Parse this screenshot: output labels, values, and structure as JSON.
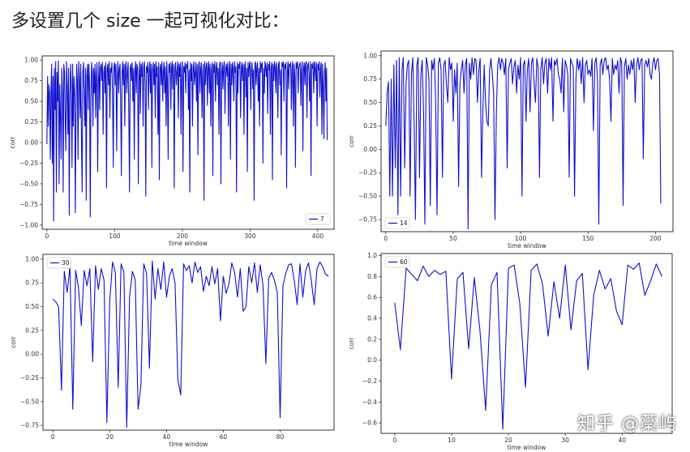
{
  "heading": "多设置几个 size 一起可视化对比：",
  "watermark": {
    "text": "知乎 @",
    "name": "藁屿"
  },
  "colors": {
    "line": "#1010cc",
    "axis": "#000000",
    "tick_text": "#333333"
  },
  "chart_data": [
    {
      "type": "line",
      "xlabel": "time window",
      "ylabel": "corr",
      "xlim": [
        -7,
        424
      ],
      "ylim": [
        -1.05,
        1.05
      ],
      "xticks": [
        0,
        100,
        200,
        300,
        400
      ],
      "yticks": [
        -1.0,
        -0.75,
        -0.5,
        -0.25,
        0.0,
        0.25,
        0.5,
        0.75,
        1.0
      ],
      "ytick_labels": [
        "−1.00",
        "−0.75",
        "−0.50",
        "−0.25",
        "0.00",
        "0.25",
        "0.50",
        "0.75",
        "1.00"
      ],
      "legend_position": "lower-right",
      "series": [
        {
          "name": "7",
          "x_start": 0,
          "x_step": 1.0,
          "values": [
            -0.02,
            0.8,
            0.2,
            0.7,
            0.6,
            -0.2,
            0.65,
            0.95,
            -0.25,
            0.8,
            -0.95,
            0.9,
            0.4,
            0.98,
            -0.6,
            0.85,
            0.5,
            0.99,
            -0.5,
            0.7,
            0.3,
            -0.2,
            0.9,
            0.6,
            -0.6,
            0.95,
            0.85,
            0.3,
            -0.1,
            0.98,
            0.7,
            0.1,
            0.9,
            -0.88,
            0.5,
            0.95,
            0.7,
            -0.3,
            0.95,
            0.2,
            0.8,
            0.6,
            -0.85,
            0.4,
            0.95,
            0.75,
            -0.2,
            0.98,
            0.8,
            0.3,
            0.95,
            0.1,
            -0.6,
            0.85,
            0.97,
            0.6,
            0.2,
            0.9,
            -0.7,
            0.8,
            0.95,
            0.4,
            0.95,
            0.7,
            -0.9,
            0.5,
            0.97,
            0.85,
            0.2,
            0.9,
            0.6,
            0.95,
            0.3,
            0.8,
            0.97,
            -0.35,
            0.7,
            0.98,
            0.4,
            0.9,
            0.95,
            0.75,
            0.97,
            0.1,
            0.85,
            0.93,
            0.6,
            0.97,
            -0.55,
            0.9,
            0.95,
            0.7,
            0.98,
            0.3,
            0.9,
            0.85,
            0.97,
            0.5,
            -0.3,
            0.92,
            0.97,
            0.7,
            0.95,
            -0.1,
            0.8,
            0.98,
            0.6,
            0.9,
            0.95,
            0.4,
            -0.4,
            0.85,
            0.98,
            0.7,
            0.95,
            0.2,
            0.92,
            0.98,
            0.6,
            0.85,
            0.97,
            0.3,
            -0.6,
            0.9,
            0.95,
            0.75,
            0.97,
            0.5,
            0.9,
            -0.2,
            0.85,
            0.98,
            0.6,
            0.95,
            0.9,
            -0.5,
            0.75,
            0.98,
            0.35,
            0.95,
            0.8,
            0.97,
            0.2,
            0.9,
            0.98,
            0.7,
            -0.65,
            0.92,
            0.85,
            0.97,
            0.4,
            0.9,
            0.98,
            0.6,
            0.95,
            -0.3,
            0.88,
            0.97,
            0.7,
            0.95,
            0.3,
            0.98,
            0.8,
            0.92,
            0.1,
            0.97,
            -0.45,
            0.9,
            0.95,
            0.7,
            0.98,
            0.5,
            0.85,
            0.97,
            0.6,
            0.92,
            0.2,
            0.98,
            0.75,
            -0.2,
            0.95,
            0.85,
            0.97,
            0.4,
            0.9,
            0.98,
            0.65,
            0.95,
            -0.55,
            0.9,
            0.97,
            0.7,
            0.85,
            0.98,
            0.3,
            0.95,
            0.8,
            0.97,
            0.1,
            0.9,
            0.98,
            -0.35,
            0.92,
            0.85,
            0.97,
            0.6,
            0.95,
            0.9,
            0.98,
            0.4,
            0.88,
            -0.6,
            0.97,
            0.75,
            0.95,
            0.2,
            0.9,
            0.98,
            0.7,
            0.85,
            0.97,
            0.5,
            0.95,
            -0.15,
            0.92,
            0.98,
            0.6,
            0.9,
            0.97,
            0.3,
            0.85,
            0.95,
            -0.7,
            0.98,
            0.7,
            0.92,
            0.97,
            0.45,
            0.9,
            0.98,
            0.6,
            0.95,
            0.2,
            0.88,
            0.97,
            -0.4,
            0.95,
            0.85,
            0.98,
            0.5,
            0.92,
            0.97,
            0.7,
            0.9,
            0.1,
            0.95,
            0.98,
            -0.5,
            0.85,
            0.97,
            0.65,
            0.92,
            0.98,
            0.35,
            0.9,
            0.95,
            0.8,
            0.97,
            0.2,
            0.88,
            0.98,
            -0.2,
            0.95,
            0.7,
            0.97,
            0.9,
            0.5,
            0.98,
            0.85,
            0.92,
            -0.6,
            0.97,
            0.6,
            0.95,
            0.9,
            0.98,
            0.3,
            0.88,
            0.97,
            0.75,
            0.95,
            0.1,
            0.92,
            0.98,
            0.55,
            0.9,
            -0.35,
            0.97,
            0.8,
            0.95,
            0.98,
            0.4,
            0.9,
            0.97,
            0.65,
            0.88,
            -0.7,
            0.95,
            0.98,
            0.7,
            0.92,
            0.97,
            0.5,
            0.9,
            0.2,
            0.98,
            0.85,
            0.95,
            0.97,
            -0.25,
            0.9,
            0.6,
            0.98,
            0.92,
            0.8,
            0.97,
            0.35,
            0.95,
            0.88,
            0.98,
            0.1,
            0.9,
            0.97,
            -0.45,
            0.95,
            0.75,
            0.98,
            0.92,
            0.6,
            0.97,
            0.9,
            0.3,
            0.95,
            0.98,
            0.7,
            0.88,
            -0.15,
            0.97,
            0.92,
            0.98,
            0.5,
            0.95,
            0.9,
            0.97,
            -0.55,
            0.85,
            0.98,
            0.65,
            0.95,
            0.92,
            0.97,
            0.4,
            0.9,
            0.98,
            0.2,
            0.95,
            0.8,
            -0.3,
            0.97,
            0.9,
            0.98,
            0.6,
            0.92,
            0.95,
            0.97,
            0.45,
            0.88,
            0.98,
            -0.1,
            0.9,
            0.97,
            0.7,
            0.95,
            0.98,
            0.3,
            0.92,
            0.97,
            0.85,
            0.5,
            0.98,
            -0.4,
            0.95,
            0.9,
            0.97,
            0.6,
            0.98,
            0.92,
            0.75,
            0.97,
            0.2,
            0.95,
            0.88,
            0.98,
            0.55,
            0.9,
            0.97,
            0.1,
            0.95,
            0.7,
            0.05,
            0.85,
            0.97,
            0.5,
            0.9,
            0.03
          ]
        }
      ]
    },
    {
      "type": "line",
      "xlabel": "time window",
      "ylabel": "corr",
      "xlim": [
        -3.5,
        213
      ],
      "ylim": [
        -0.88,
        1.05
      ],
      "xticks": [
        0,
        50,
        100,
        150,
        200
      ],
      "yticks": [
        -0.75,
        -0.5,
        -0.25,
        0.0,
        0.25,
        0.5,
        0.75,
        1.0
      ],
      "ytick_labels": [
        "−0.75",
        "−0.50",
        "−0.25",
        "0.00",
        "0.25",
        "0.50",
        "0.75",
        "1.00"
      ],
      "legend_position": "lower-left",
      "series": [
        {
          "name": "14",
          "x_start": 0,
          "x_step": 1.0,
          "values": [
            0.25,
            0.6,
            0.72,
            -0.5,
            0.75,
            -0.5,
            0.9,
            -0.2,
            0.95,
            -0.7,
            0.98,
            -0.5,
            0.85,
            0.98,
            -0.2,
            0.7,
            0.9,
            0.95,
            -0.5,
            0.8,
            0.98,
            0.3,
            -0.75,
            0.9,
            0.98,
            -0.3,
            0.8,
            0.95,
            0.4,
            -0.8,
            0.98,
            0.9,
            0.75,
            -0.6,
            0.95,
            0.85,
            0.97,
            0.5,
            -0.7,
            0.92,
            0.98,
            0.85,
            -0.3,
            0.9,
            0.95,
            0.7,
            0.5,
            0.98,
            0.85,
            0.92,
            0.3,
            0.85,
            0.6,
            0.92,
            -0.4,
            0.7,
            0.85,
            0.95,
            0.6,
            0.9,
            0.97,
            -0.85,
            0.92,
            0.75,
            0.98,
            0.8,
            0.97,
            0.95,
            0.5,
            0.85,
            0.97,
            -0.3,
            0.4,
            0.9,
            0.5,
            0.3,
            0.25,
            0.85,
            0.97,
            0.8,
            0.6,
            -0.75,
            0.4,
            0.9,
            0.98,
            0.85,
            0.97,
            0.92,
            0.8,
            0.97,
            -0.2,
            0.85,
            0.92,
            0.97,
            0.7,
            0.88,
            0.95,
            0.6,
            0.9,
            0.75,
            0.98,
            -0.5,
            0.9,
            0.95,
            0.3,
            0.85,
            0.97,
            0.4,
            0.92,
            0.98,
            0.7,
            0.5,
            0.97,
            0.88,
            -0.3,
            0.85,
            0.98,
            0.7,
            0.92,
            0.97,
            0.6,
            0.97,
            0.85,
            0.98,
            0.3,
            0.95,
            0.9,
            0.97,
            0.8,
            0.75,
            0.6,
            0.97,
            0.4,
            0.95,
            0.9,
            0.8,
            -0.3,
            0.97,
            0.92,
            0.88,
            -0.5,
            0.75,
            0.97,
            0.85,
            0.95,
            0.7,
            0.98,
            0.5,
            0.9,
            0.95,
            0.8,
            0.85,
            0.78,
            0.97,
            0.2,
            0.92,
            0.98,
            0.75,
            -0.8,
            0.9,
            0.97,
            0.8,
            0.95,
            0.98,
            0.85,
            0.9,
            0.75,
            0.3,
            0.97,
            0.8,
            0.9,
            0.85,
            0.95,
            0.6,
            0.98,
            0.92,
            -0.6,
            0.88,
            0.97,
            0.75,
            0.9,
            0.8,
            0.95,
            0.85,
            0.97,
            0.5,
            0.9,
            0.98,
            0.85,
            0.95,
            0.97,
            -0.1,
            0.9,
            0.95,
            0.88,
            0.97,
            0.8,
            0.75,
            0.92,
            0.98,
            0.85,
            0.95,
            0.97,
            0.8,
            -0.58
          ]
        }
      ]
    },
    {
      "type": "line",
      "xlabel": "time window",
      "ylabel": "corr",
      "xlim": [
        -3.5,
        99
      ],
      "ylim": [
        -0.8,
        1.05
      ],
      "xticks": [
        0,
        20,
        40,
        60,
        80
      ],
      "yticks": [
        -0.75,
        -0.5,
        -0.25,
        0.0,
        0.25,
        0.5,
        0.75,
        1.0
      ],
      "ytick_labels": [
        "−0.75",
        "−0.50",
        "−0.25",
        "0.00",
        "0.25",
        "0.50",
        "0.75",
        "1.00"
      ],
      "legend_position": "upper-left",
      "series": [
        {
          "name": "30",
          "x_start": 0,
          "x_step": 1.0,
          "values": [
            0.58,
            0.55,
            0.5,
            -0.38,
            0.87,
            0.65,
            0.92,
            -0.58,
            0.88,
            0.7,
            0.3,
            0.88,
            0.72,
            0.9,
            -0.08,
            0.93,
            0.68,
            0.9,
            0.78,
            -0.72,
            0.55,
            0.97,
            0.86,
            -0.35,
            0.95,
            0.86,
            -0.77,
            0.6,
            0.87,
            0.78,
            -0.58,
            -0.33,
            0.95,
            0.85,
            -0.15,
            0.98,
            0.58,
            0.9,
            0.68,
            0.97,
            0.6,
            0.82,
            0.9,
            0.75,
            -0.27,
            -0.43,
            0.95,
            0.88,
            0.93,
            0.75,
            0.97,
            0.86,
            0.92,
            0.66,
            0.82,
            0.72,
            0.92,
            0.74,
            0.9,
            0.35,
            0.82,
            0.64,
            0.74,
            0.96,
            0.86,
            0.6,
            0.9,
            0.45,
            0.5,
            0.92,
            0.75,
            0.96,
            0.65,
            0.94,
            0.72,
            -0.1,
            0.8,
            0.86,
            0.78,
            0.65,
            -0.67,
            0.72,
            0.85,
            0.94,
            0.95,
            0.77,
            0.52,
            0.95,
            0.6,
            0.88,
            0.96,
            0.77,
            0.52,
            0.9,
            0.97,
            0.92,
            0.84,
            0.82
          ]
        }
      ]
    },
    {
      "type": "line",
      "xlabel": "time window",
      "ylabel": "corr",
      "xlim": [
        -2.4,
        48.8
      ],
      "ylim": [
        -0.7,
        1.02
      ],
      "xticks": [
        0,
        10,
        20,
        30,
        40
      ],
      "yticks": [
        -0.6,
        -0.4,
        -0.2,
        0.0,
        0.2,
        0.4,
        0.6,
        0.8,
        1.0
      ],
      "ytick_labels": [
        "−0.6",
        "−0.4",
        "−0.2",
        "0.0",
        "0.2",
        "0.4",
        "0.6",
        "0.8",
        "1.0"
      ],
      "legend_position": "upper-left",
      "series": [
        {
          "name": "60",
          "x_start": 0,
          "x_step": 1.0,
          "values": [
            0.55,
            0.1,
            0.88,
            0.82,
            0.76,
            0.9,
            0.8,
            0.86,
            0.82,
            0.85,
            -0.18,
            0.78,
            0.84,
            0.11,
            0.79,
            0.28,
            -0.48,
            0.72,
            0.84,
            -0.66,
            0.88,
            0.91,
            0.54,
            -0.26,
            0.86,
            0.92,
            0.73,
            0.23,
            0.75,
            0.4,
            0.91,
            0.29,
            0.76,
            0.83,
            -0.09,
            0.62,
            0.86,
            0.68,
            0.78,
            0.47,
            0.34,
            0.91,
            0.87,
            0.93,
            0.62,
            0.76,
            0.92,
            0.8
          ]
        }
      ]
    }
  ]
}
